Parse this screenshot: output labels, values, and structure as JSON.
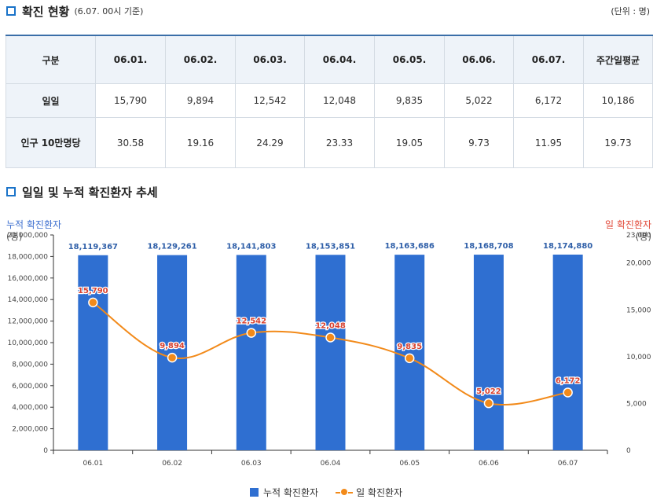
{
  "section1": {
    "title": "확진 현황",
    "subtitle": "(6.07. 00시 기준)",
    "unit_note": "(단위 : 명)"
  },
  "table": {
    "headers": [
      "구분",
      "06.01.",
      "06.02.",
      "06.03.",
      "06.04.",
      "06.05.",
      "06.06.",
      "06.07.",
      "주간일평균"
    ],
    "rows": [
      {
        "label": "일일",
        "values": [
          "15,790",
          "9,894",
          "12,542",
          "12,048",
          "9,835",
          "5,022",
          "6,172",
          "10,186"
        ]
      },
      {
        "label": "인구 10만명당",
        "values": [
          "30.58",
          "19.16",
          "24.29",
          "23.33",
          "19.05",
          "9.73",
          "11.95",
          "19.73"
        ]
      }
    ]
  },
  "section2": {
    "title": "일일 및 누적 확진환자 추세"
  },
  "axes": {
    "left_label": "누적 확진환자",
    "left_unit": "(명)",
    "right_label": "일 확진환자",
    "right_unit": "(명)"
  },
  "legend": {
    "bar": "누적 확진환자",
    "line": "일 확진환자"
  },
  "colors": {
    "bar": "#2f6fd1",
    "line": "#f28a1a",
    "left_axis_label": "#3d6fcf",
    "right_axis_label": "#e24b3b",
    "table_border": "#3a6ea8"
  },
  "chart_data": {
    "type": "bar",
    "categories": [
      "06.01",
      "06.02",
      "06.03",
      "06.04",
      "06.05",
      "06.06",
      "06.07"
    ],
    "series": [
      {
        "name": "누적 확진환자",
        "type": "bar",
        "axis": "left",
        "values": [
          18119367,
          18129261,
          18141803,
          18153851,
          18163686,
          18168708,
          18174880
        ],
        "labels": [
          "18,119,367",
          "18,129,261",
          "18,141,803",
          "18,153,851",
          "18,163,686",
          "18,168,708",
          "18,174,880"
        ]
      },
      {
        "name": "일 확진환자",
        "type": "line",
        "axis": "right",
        "values": [
          15790,
          9894,
          12542,
          12048,
          9835,
          5022,
          6172
        ],
        "labels": [
          "15,790",
          "9,894",
          "12,542",
          "12,048",
          "9,835",
          "5,022",
          "6,172"
        ]
      }
    ],
    "ylim_left": [
      0,
      20000000
    ],
    "yticks_left": [
      "0",
      "2,000,000",
      "4,000,000",
      "6,000,000",
      "8,000,000",
      "10,000,000",
      "12,000,000",
      "14,000,000",
      "16,000,000",
      "18,000,000",
      "20,000,000"
    ],
    "ylim_right": [
      0,
      23000
    ],
    "yticks_right": [
      0,
      5000,
      10000,
      15000,
      20000,
      23000
    ],
    "yticks_right_labels": [
      "0",
      "5,000",
      "10,000",
      "15,000",
      "20,000",
      "23,000"
    ],
    "legend_position": "bottom-center",
    "grid": false
  }
}
